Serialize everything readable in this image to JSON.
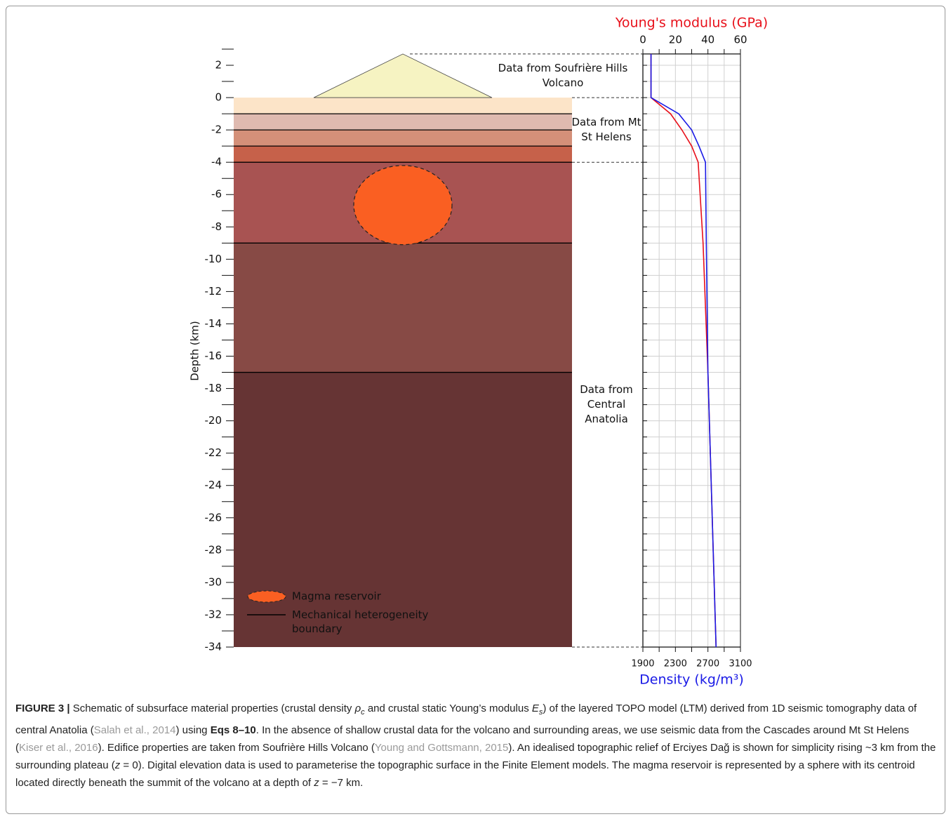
{
  "chart_data": {
    "type": "line",
    "y_label": "Depth (km)",
    "ylim": [
      -34,
      3
    ],
    "yticks": [
      2,
      0,
      -2,
      -4,
      -6,
      -8,
      -10,
      -12,
      -14,
      -16,
      -18,
      -20,
      -22,
      -24,
      -26,
      -28,
      -30,
      -32,
      -34
    ],
    "minor_yticks": [
      3,
      1,
      -1,
      -3,
      -5,
      -7,
      -9,
      -11,
      -13,
      -15,
      -17,
      -19,
      -21,
      -23,
      -25,
      -27,
      -29,
      -31,
      -33
    ],
    "volcano_height": 2.7,
    "volcano_color": "#f6f3c2",
    "layers": [
      {
        "top": 0,
        "bottom": -1,
        "color": "#fce4c8"
      },
      {
        "top": -1,
        "bottom": -2,
        "color": "#dfbab0"
      },
      {
        "top": -2,
        "bottom": -3,
        "color": "#d49079"
      },
      {
        "top": -3,
        "bottom": -4,
        "color": "#c6614a"
      },
      {
        "top": -4,
        "bottom": -9,
        "color": "#a85352"
      },
      {
        "top": -9,
        "bottom": -17,
        "color": "#874a45"
      },
      {
        "top": -17,
        "bottom": -34,
        "color": "#663434"
      }
    ],
    "reservoir": {
      "label": "Magma reservoir",
      "top": -4.2,
      "bottom": -9.1,
      "color": "#fa5f22"
    },
    "boundary_label": "Mechanical heterogeneity boundary",
    "annotations": [
      {
        "text": "Data from Soufrière Hills Volcano",
        "top": 2.7,
        "bottom": 0
      },
      {
        "text": "Data from Mt St Helens",
        "top": 0,
        "bottom": -4
      },
      {
        "text": "Data from Central Anatolia",
        "top": -4,
        "bottom": -34
      }
    ],
    "depths": [
      2.7,
      0,
      -1,
      -2,
      -3,
      -4,
      -9,
      -17,
      -34
    ],
    "x2_label": "Young's modulus (GPa)",
    "x2_label_color": "#e8101a",
    "x2lim": [
      0,
      60
    ],
    "x2ticks": [
      0,
      20,
      40,
      60
    ],
    "x2_minor_ticks": [
      10,
      30,
      50
    ],
    "x_label": "Density (kg/m³)",
    "x_label_color": "#1a1ae6",
    "xlim": [
      1900,
      3100
    ],
    "xticks": [
      1900,
      2300,
      2700,
      3100
    ],
    "x_minor_ticks": [
      2100,
      2500,
      2900
    ],
    "grid": true,
    "series": [
      {
        "axis": "x2",
        "color": "#e8101a",
        "values": [
          5,
          5,
          17,
          24,
          30,
          34,
          37,
          40,
          45
        ]
      },
      {
        "axis": "x",
        "color": "#1a1ae6",
        "values": [
          2000,
          2000,
          2340,
          2500,
          2590,
          2670,
          2680,
          2700,
          2800
        ]
      }
    ]
  },
  "caption": [
    {
      "text": "FIGURE 3 |",
      "style": "bold"
    },
    {
      "text": " Schematic of subsurface material properties (crustal density ",
      "style": "plain"
    },
    {
      "text": "ρ",
      "style": "italic"
    },
    {
      "text": "c",
      "style": "sub"
    },
    {
      "text": " and crustal static Young’s modulus ",
      "style": "plain"
    },
    {
      "text": "E",
      "style": "italic"
    },
    {
      "text": "s",
      "style": "sub"
    },
    {
      "text": ") of the layered TOPO model (LTM) derived from 1D seismic tomography data of central Anatolia (",
      "style": "plain"
    },
    {
      "text": "Salah et al., 2014",
      "style": "link"
    },
    {
      "text": ") using ",
      "style": "plain"
    },
    {
      "text": "Eqs 8–10",
      "style": "bold"
    },
    {
      "text": ". In the absence of shallow crustal data for the volcano and surrounding areas, we use seismic data from the Cascades around Mt St Helens (",
      "style": "plain"
    },
    {
      "text": "Kiser et al., 2016",
      "style": "link"
    },
    {
      "text": "). Edifice properties are taken from Soufrière Hills Volcano (",
      "style": "plain"
    },
    {
      "text": "Young and Gottsmann, 2015",
      "style": "link"
    },
    {
      "text": "). An idealised topographic relief of Erciyes Dağ is shown for simplicity rising ~3 km from the surrounding plateau (",
      "style": "plain"
    },
    {
      "text": "z",
      "style": "italic"
    },
    {
      "text": " = 0). Digital elevation data is used to parameterise the topographic surface in the Finite Element models. The magma reservoir is represented by a sphere with its centroid located directly beneath the summit of the volcano at a depth of ",
      "style": "plain"
    },
    {
      "text": "z",
      "style": "italic"
    },
    {
      "text": " = −7 km.",
      "style": "plain"
    }
  ]
}
